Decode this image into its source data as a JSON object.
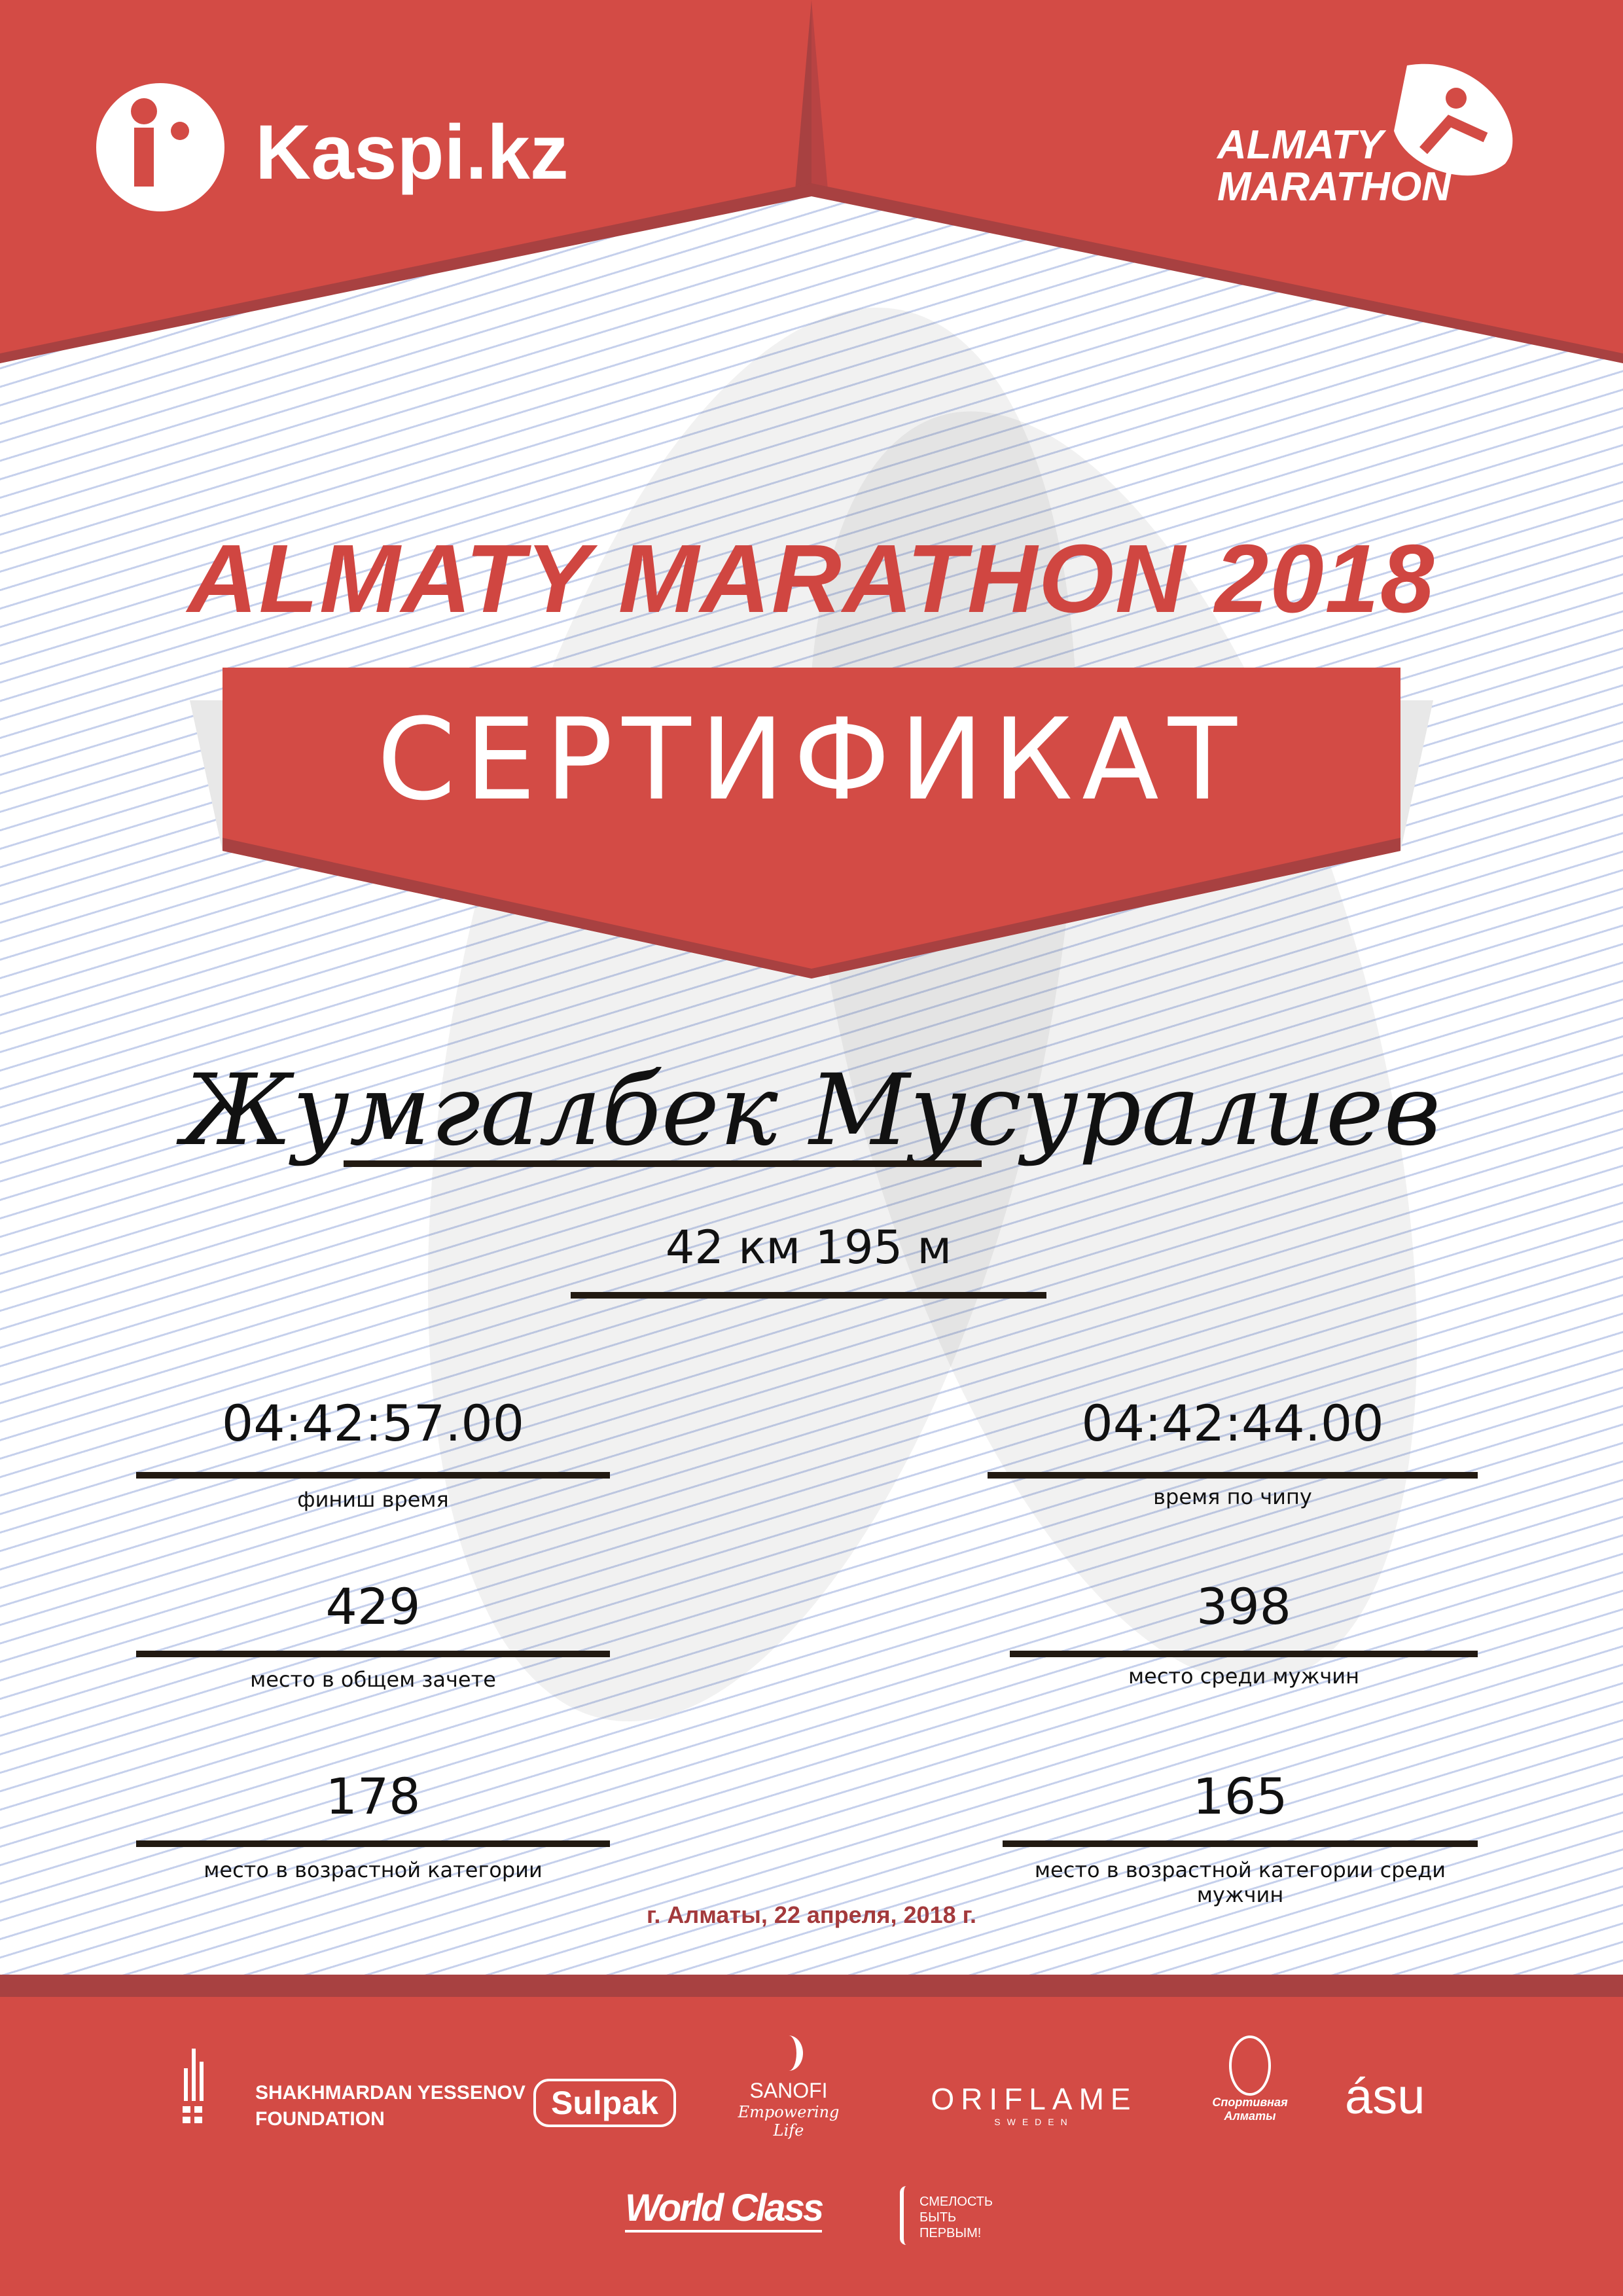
{
  "header": {
    "sponsor_logo": "Kaspi.kz",
    "event_logo_line1": "ALMATY",
    "event_logo_line2": "MARATHON"
  },
  "title": "ALMATY MARATHON 2018",
  "certificate_label": "СЕРТИФИКАТ",
  "participant_name": "Жумгалбек Мусуралиев",
  "distance": "42 км 195 м",
  "results": {
    "finish_time": {
      "value": "04:42:57.00",
      "label": "финиш время"
    },
    "chip_time": {
      "value": "04:42:44.00",
      "label": "время по чипу"
    },
    "overall_place": {
      "value": "429",
      "label": "место в общем зачете"
    },
    "men_place": {
      "value": "398",
      "label": "место среди мужчин"
    },
    "age_place": {
      "value": "178",
      "label": "место в возрастной категории"
    },
    "age_men_place": {
      "value": "165",
      "label": "место в возрастной категории среди мужчин"
    }
  },
  "date_line": "г. Алматы, 22 апреля, 2018 г.",
  "sponsors": {
    "yessenov_line1": "SHAKHMARDAN YESSENOV",
    "yessenov_line2": "FOUNDATION",
    "sulpak": "Sulpak",
    "sanofi": "SANOFI",
    "sanofi_tagline": "Empowering Life",
    "oriflame": "ORIFLAME",
    "oriflame_sub": "SWEDEN",
    "sport_almaty": "Спортивная Алматы",
    "asu": "ásu",
    "worldclass": "World Class",
    "smelost_line1": "СМЕЛОСТЬ",
    "smelost_line2": "БЫТЬ",
    "smelost_line3": "ПЕРВЫМ!"
  },
  "colors": {
    "brand_red": "#d34b45",
    "dark_red": "#a84141",
    "date_red": "#a33a3c"
  }
}
